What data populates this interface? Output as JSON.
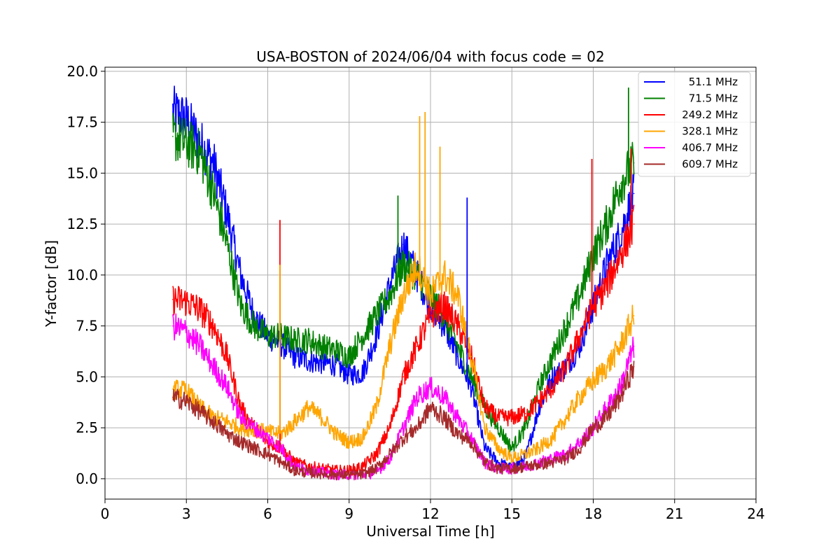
{
  "chart_data": {
    "type": "line",
    "title": "USA-BOSTON of 2024/06/04 with focus code = 02",
    "xlabel": "Universal Time [h]",
    "ylabel": "Y-factor [dB]",
    "xlim": [
      0,
      24
    ],
    "ylim": [
      -1.0,
      20.2
    ],
    "xticks": [
      0,
      3,
      6,
      9,
      12,
      15,
      18,
      21,
      24
    ],
    "xtick_labels": [
      "0",
      "3",
      "6",
      "9",
      "12",
      "15",
      "18",
      "21",
      "24"
    ],
    "yticks": [
      0.0,
      2.5,
      5.0,
      7.5,
      10.0,
      12.5,
      15.0,
      17.5,
      20.0
    ],
    "ytick_labels": [
      "0.0",
      "2.5",
      "5.0",
      "7.5",
      "10.0",
      "12.5",
      "15.0",
      "17.5",
      "20.0"
    ],
    "grid": true,
    "legend_position": "top-right",
    "series": [
      {
        "name": "51.1 MHz",
        "color": "#0000ff",
        "x": [
          2.5,
          3.0,
          3.5,
          4.0,
          4.5,
          5.0,
          5.5,
          6.0,
          6.5,
          7.0,
          7.5,
          8.0,
          8.5,
          9.0,
          9.5,
          10.0,
          10.5,
          11.0,
          11.5,
          12.0,
          12.5,
          13.0,
          13.5,
          14.0,
          14.5,
          15.0,
          15.5,
          16.0,
          16.5,
          17.0,
          17.5,
          18.0,
          18.5,
          19.0,
          19.5
        ],
        "y": [
          18.0,
          17.6,
          16.5,
          15.5,
          13.0,
          10.0,
          8.0,
          7.0,
          6.6,
          6.0,
          5.8,
          5.7,
          5.6,
          5.1,
          5.2,
          7.0,
          9.5,
          11.5,
          10.0,
          8.5,
          7.5,
          6.0,
          4.5,
          1.5,
          0.8,
          0.5,
          1.0,
          3.5,
          5.0,
          5.5,
          6.5,
          8.5,
          10.5,
          12.0,
          14.0
        ]
      },
      {
        "name": "71.5 MHz",
        "color": "#008000",
        "x": [
          2.5,
          3.0,
          3.5,
          4.0,
          4.5,
          5.0,
          5.5,
          6.0,
          6.5,
          7.0,
          7.5,
          8.0,
          8.5,
          9.0,
          9.5,
          10.0,
          10.5,
          11.0,
          11.5,
          12.0,
          12.5,
          13.0,
          13.5,
          14.0,
          14.5,
          15.0,
          15.5,
          16.0,
          16.5,
          17.0,
          17.5,
          18.0,
          18.5,
          19.0,
          19.5
        ],
        "y": [
          16.8,
          16.5,
          16.0,
          14.0,
          11.5,
          8.5,
          7.5,
          7.0,
          7.0,
          6.8,
          6.8,
          6.5,
          6.3,
          6.0,
          7.0,
          8.0,
          9.0,
          10.5,
          10.0,
          9.0,
          8.0,
          6.5,
          5.0,
          3.5,
          2.5,
          1.5,
          2.5,
          4.5,
          6.0,
          7.5,
          9.0,
          11.0,
          12.5,
          14.5,
          15.5
        ]
      },
      {
        "name": "249.2 MHz",
        "color": "#ff0000",
        "x": [
          2.5,
          3.0,
          3.5,
          4.0,
          4.5,
          5.0,
          5.5,
          6.0,
          6.5,
          7.0,
          7.5,
          8.0,
          8.5,
          9.0,
          9.5,
          10.0,
          10.5,
          11.0,
          11.5,
          12.0,
          12.5,
          13.0,
          13.5,
          14.0,
          14.5,
          15.0,
          15.5,
          16.0,
          16.5,
          17.0,
          17.5,
          18.0,
          18.5,
          19.0,
          19.5
        ],
        "y": [
          8.8,
          8.7,
          8.3,
          7.5,
          6.0,
          3.5,
          2.5,
          1.8,
          1.5,
          0.8,
          0.6,
          0.5,
          0.4,
          0.4,
          0.6,
          1.2,
          2.5,
          5.0,
          6.5,
          8.0,
          8.5,
          7.5,
          6.0,
          3.5,
          3.0,
          3.0,
          3.2,
          3.8,
          4.5,
          5.5,
          7.0,
          8.5,
          9.5,
          11.0,
          12.5
        ]
      },
      {
        "name": "328.1 MHz",
        "color": "#ffa500",
        "x": [
          2.5,
          3.0,
          3.5,
          4.0,
          4.5,
          5.0,
          5.5,
          6.0,
          6.5,
          7.0,
          7.5,
          8.0,
          8.5,
          9.0,
          9.5,
          10.0,
          10.5,
          11.0,
          11.5,
          12.0,
          12.5,
          13.0,
          13.5,
          14.0,
          14.5,
          15.0,
          15.5,
          16.0,
          16.5,
          17.0,
          17.5,
          18.0,
          18.5,
          19.0,
          19.5
        ],
        "y": [
          4.4,
          4.3,
          3.5,
          3.0,
          2.8,
          2.5,
          2.4,
          2.3,
          2.2,
          2.8,
          3.5,
          3.0,
          2.2,
          1.8,
          2.0,
          3.5,
          6.5,
          9.0,
          10.5,
          9.0,
          10.0,
          9.0,
          6.0,
          2.5,
          1.5,
          1.0,
          1.2,
          1.5,
          2.0,
          3.0,
          4.0,
          4.8,
          5.5,
          6.5,
          8.0
        ]
      },
      {
        "name": "406.7 MHz",
        "color": "#ff00ff",
        "x": [
          2.5,
          3.0,
          3.5,
          4.0,
          4.5,
          5.0,
          5.5,
          6.0,
          6.5,
          7.0,
          7.5,
          8.0,
          8.5,
          9.0,
          9.5,
          10.0,
          10.5,
          11.0,
          11.5,
          12.0,
          12.5,
          13.0,
          13.5,
          14.0,
          14.5,
          15.0,
          15.5,
          16.0,
          16.5,
          17.0,
          17.5,
          18.0,
          18.5,
          19.0,
          19.5
        ],
        "y": [
          7.5,
          7.2,
          6.5,
          5.5,
          4.5,
          3.0,
          2.5,
          2.0,
          1.5,
          0.6,
          0.4,
          0.3,
          0.2,
          0.2,
          0.2,
          0.3,
          1.0,
          2.5,
          4.0,
          4.5,
          4.0,
          3.0,
          2.0,
          0.8,
          0.5,
          0.5,
          0.6,
          0.8,
          1.0,
          1.2,
          1.8,
          2.5,
          3.5,
          4.5,
          6.5
        ]
      },
      {
        "name": "609.7 MHz",
        "color": "#a52a2a",
        "x": [
          2.5,
          3.0,
          3.5,
          4.0,
          4.5,
          5.0,
          5.5,
          6.0,
          6.5,
          7.0,
          7.5,
          8.0,
          8.5,
          9.0,
          9.5,
          10.0,
          10.5,
          11.0,
          11.5,
          12.0,
          12.5,
          13.0,
          13.5,
          14.0,
          14.5,
          15.0,
          15.5,
          16.0,
          16.5,
          17.0,
          17.5,
          18.0,
          18.5,
          19.0,
          19.5
        ],
        "y": [
          4.0,
          3.8,
          3.3,
          2.8,
          2.2,
          1.8,
          1.5,
          1.2,
          0.8,
          0.4,
          0.3,
          0.25,
          0.2,
          0.2,
          0.2,
          0.5,
          1.2,
          2.0,
          2.5,
          3.5,
          3.0,
          2.2,
          1.8,
          0.8,
          0.5,
          0.5,
          0.6,
          0.7,
          0.8,
          1.0,
          1.5,
          2.5,
          3.0,
          4.0,
          5.5
        ]
      }
    ],
    "spikes": [
      {
        "series": 0,
        "x": 13.35,
        "y": 13.8
      },
      {
        "series": 1,
        "x": 10.8,
        "y": 13.9
      },
      {
        "series": 1,
        "x": 19.3,
        "y": 19.2
      },
      {
        "series": 2,
        "x": 6.45,
        "y": 12.7
      },
      {
        "series": 2,
        "x": 17.95,
        "y": 15.7
      },
      {
        "series": 2,
        "x": 19.4,
        "y": 16.2
      },
      {
        "series": 3,
        "x": 11.6,
        "y": 17.8
      },
      {
        "series": 3,
        "x": 11.8,
        "y": 18.0
      },
      {
        "series": 3,
        "x": 12.35,
        "y": 16.3
      },
      {
        "series": 3,
        "x": 6.45,
        "y": 10.5
      }
    ]
  }
}
